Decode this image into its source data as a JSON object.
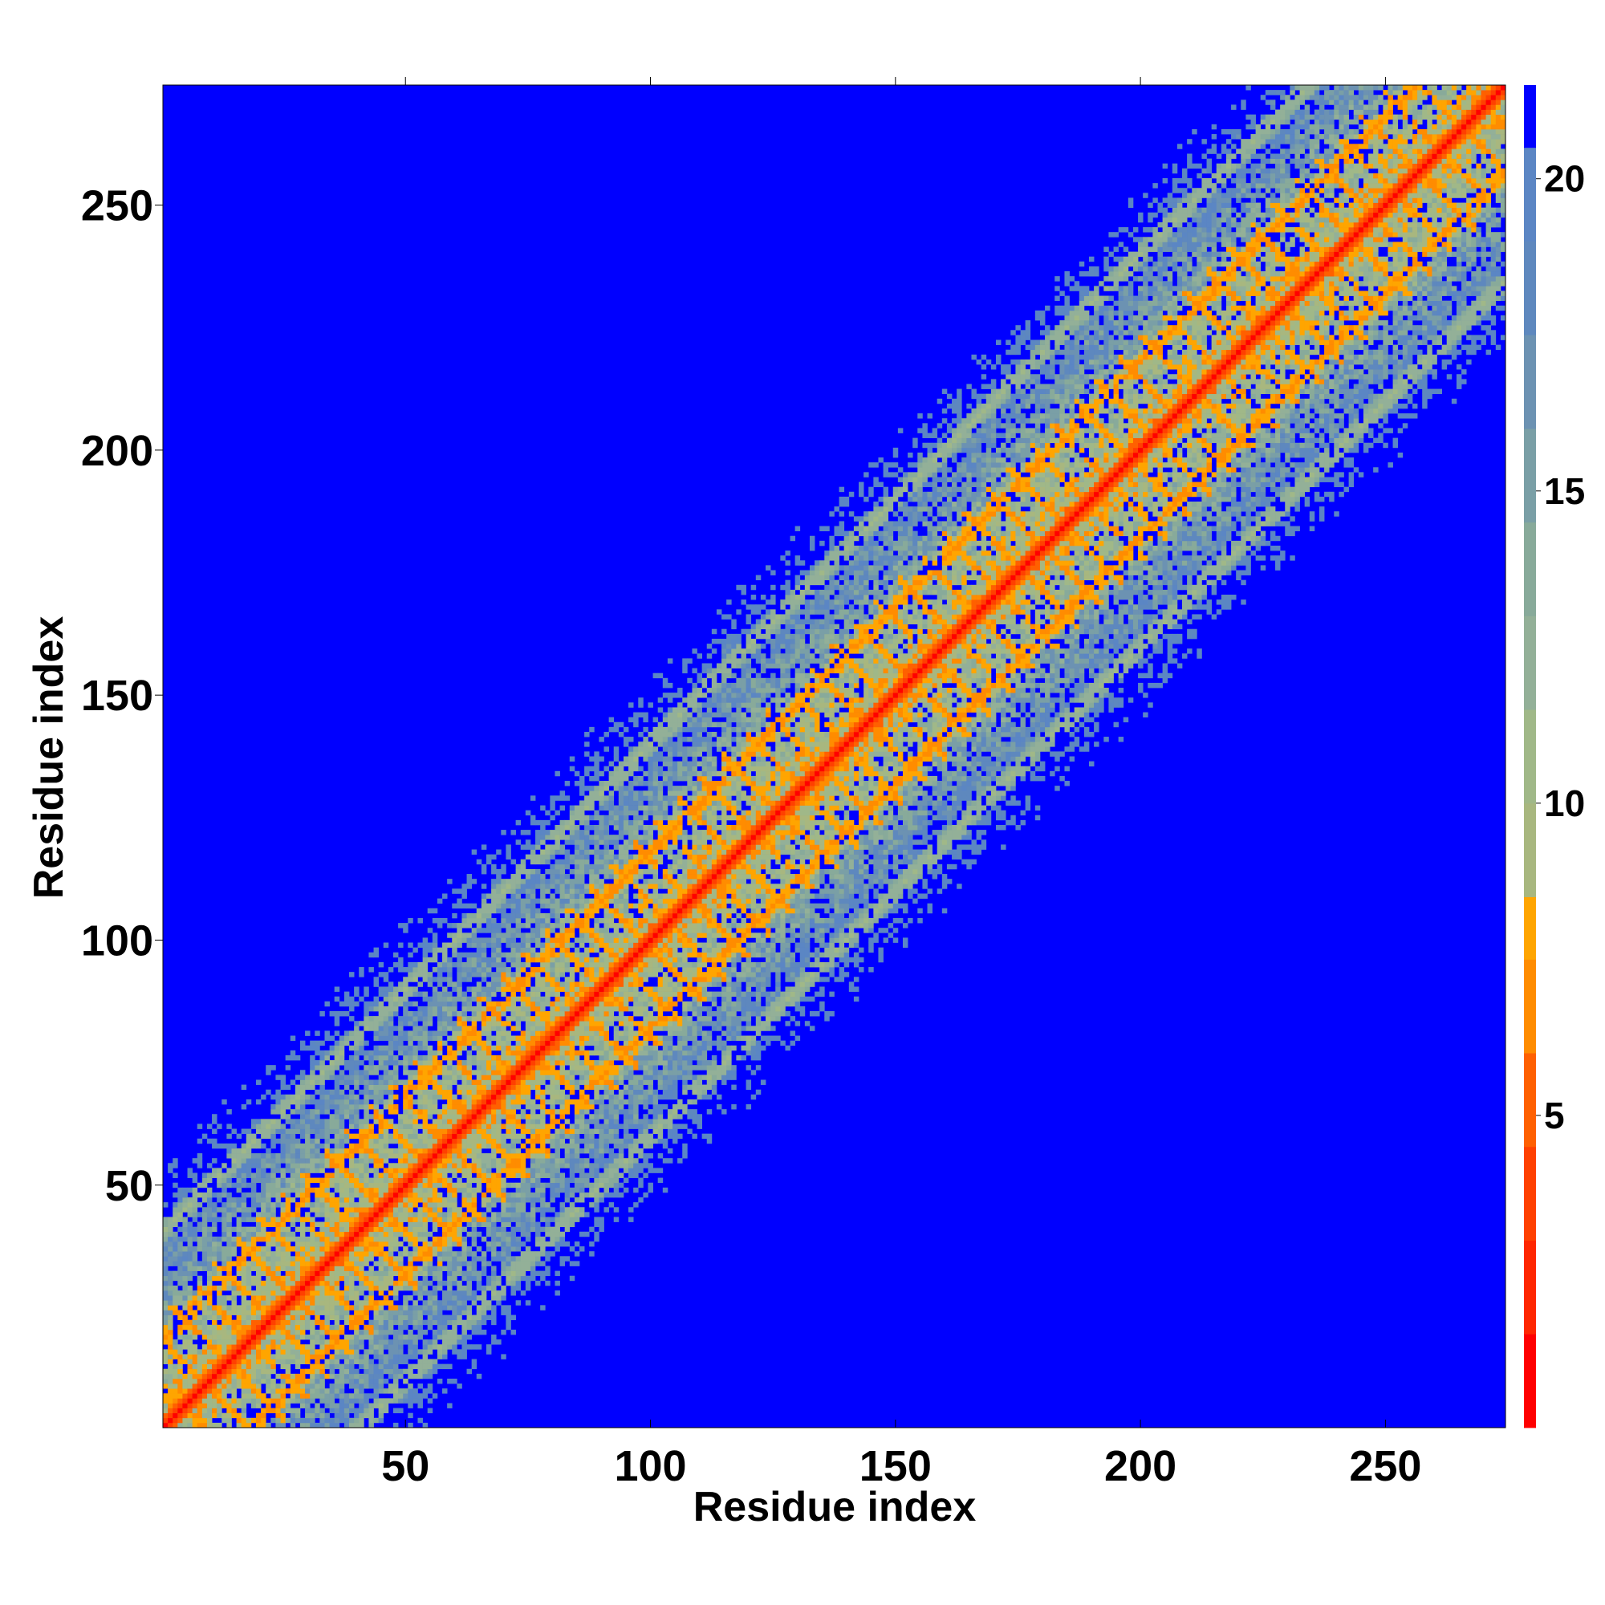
{
  "chart_data": {
    "type": "heatmap",
    "title": "",
    "xlabel": "Residue index",
    "ylabel": "Residue index",
    "n_residues": 274,
    "xlim": [
      1,
      274
    ],
    "ylim": [
      1,
      274
    ],
    "x_ticks": [
      50,
      100,
      150,
      200,
      250
    ],
    "y_ticks": [
      50,
      100,
      150,
      200,
      250
    ],
    "colorbar": {
      "range": [
        0,
        21.5
      ],
      "ticks": [
        5,
        10,
        15,
        20
      ],
      "levels": [
        {
          "max": 1.5,
          "color": "#ff0000"
        },
        {
          "max": 3.0,
          "color": "#ff2600"
        },
        {
          "max": 4.5,
          "color": "#ff4000"
        },
        {
          "max": 6.0,
          "color": "#ff6000"
        },
        {
          "max": 7.5,
          "color": "#ff8c00"
        },
        {
          "max": 8.5,
          "color": "#ffa500"
        },
        {
          "max": 10.0,
          "color": "#a8b77f"
        },
        {
          "max": 11.5,
          "color": "#a0b888"
        },
        {
          "max": 13.0,
          "color": "#93b098"
        },
        {
          "max": 14.5,
          "color": "#88aa9a"
        },
        {
          "max": 16.0,
          "color": "#7a9fa6"
        },
        {
          "max": 17.5,
          "color": "#6c92b2"
        },
        {
          "max": 19.0,
          "color": "#5e88be"
        },
        {
          "max": 20.5,
          "color": "#5b86c4"
        },
        {
          "max": 21.5,
          "color": "#0000ff"
        }
      ]
    },
    "model": {
      "description_free": true,
      "cutoff_above": 20.5,
      "diagonal_value": 1.0,
      "side_bands": [
        {
          "offset": 18,
          "value": 7.0
        },
        {
          "offset": -18,
          "value": 7.0
        },
        {
          "offset": 40,
          "value": 11.5
        },
        {
          "offset": -40,
          "value": 11.5
        }
      ],
      "max_contact_offset": 62
    }
  }
}
